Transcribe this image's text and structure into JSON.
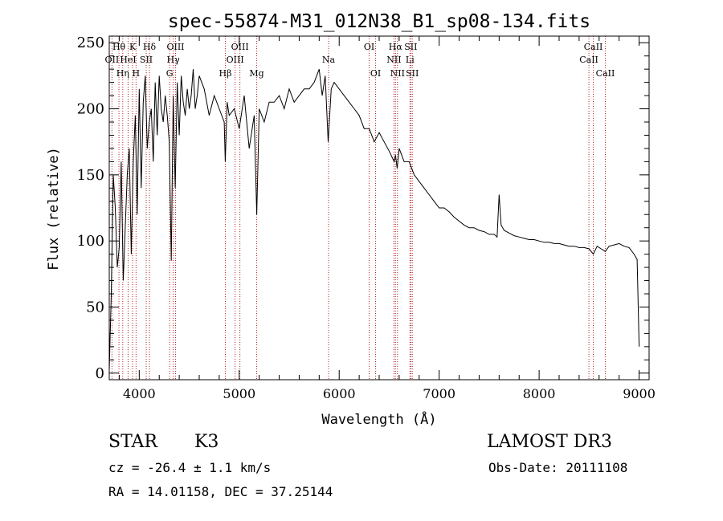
{
  "chart_data": {
    "type": "line",
    "title": "spec-55874-M31_012N38_B1_sp08-134.fits",
    "xlabel": "Wavelength (Å)",
    "ylabel": "Flux (relative)",
    "xlim": [
      3700,
      9100
    ],
    "ylim": [
      -5,
      255
    ],
    "xticks": [
      4000,
      5000,
      6000,
      7000,
      8000,
      9000
    ],
    "yticks": [
      0,
      50,
      100,
      150,
      200,
      250
    ],
    "x_minor_step": 200,
    "y_minor_step": 10,
    "colors": {
      "line": "#000000",
      "marker": "#b22222",
      "axes": "#000000"
    },
    "series": [
      {
        "name": "flux",
        "x": [
          3700,
          3720,
          3740,
          3760,
          3780,
          3800,
          3820,
          3840,
          3860,
          3880,
          3900,
          3920,
          3940,
          3960,
          3980,
          4000,
          4020,
          4040,
          4060,
          4080,
          4100,
          4120,
          4140,
          4160,
          4180,
          4200,
          4220,
          4240,
          4260,
          4280,
          4300,
          4320,
          4340,
          4360,
          4380,
          4400,
          4420,
          4440,
          4460,
          4480,
          4500,
          4520,
          4540,
          4560,
          4580,
          4600,
          4650,
          4700,
          4750,
          4800,
          4850,
          4860,
          4880,
          4900,
          4950,
          5000,
          5050,
          5100,
          5150,
          5175,
          5200,
          5250,
          5300,
          5350,
          5400,
          5450,
          5500,
          5550,
          5600,
          5650,
          5700,
          5750,
          5800,
          5830,
          5860,
          5890,
          5920,
          5950,
          6000,
          6050,
          6100,
          6150,
          6200,
          6250,
          6300,
          6350,
          6400,
          6450,
          6500,
          6550,
          6563,
          6580,
          6600,
          6650,
          6700,
          6750,
          6800,
          6850,
          6900,
          6950,
          7000,
          7050,
          7100,
          7150,
          7200,
          7250,
          7300,
          7350,
          7400,
          7450,
          7500,
          7550,
          7580,
          7600,
          7620,
          7650,
          7700,
          7750,
          7800,
          7850,
          7900,
          7950,
          8000,
          8050,
          8100,
          8150,
          8200,
          8250,
          8300,
          8350,
          8400,
          8450,
          8500,
          8542,
          8580,
          8620,
          8662,
          8700,
          8750,
          8800,
          8850,
          8900,
          8950,
          8980,
          9000
        ],
        "y": [
          2,
          60,
          150,
          125,
          80,
          95,
          160,
          70,
          110,
          150,
          170,
          90,
          160,
          195,
          120,
          215,
          140,
          205,
          225,
          170,
          190,
          200,
          160,
          220,
          180,
          225,
          200,
          190,
          210,
          195,
          175,
          85,
          210,
          140,
          220,
          180,
          225,
          205,
          195,
          215,
          200,
          210,
          230,
          200,
          210,
          225,
          215,
          195,
          210,
          200,
          190,
          160,
          205,
          195,
          200,
          185,
          210,
          170,
          195,
          120,
          200,
          190,
          205,
          205,
          210,
          200,
          215,
          205,
          210,
          215,
          215,
          220,
          230,
          210,
          225,
          175,
          215,
          220,
          215,
          210,
          205,
          200,
          195,
          185,
          185,
          175,
          182,
          175,
          168,
          160,
          165,
          155,
          170,
          160,
          160,
          150,
          145,
          140,
          135,
          130,
          125,
          125,
          122,
          118,
          115,
          112,
          110,
          110,
          108,
          107,
          105,
          105,
          103,
          135,
          112,
          108,
          106,
          104,
          103,
          102,
          101,
          101,
          100,
          99,
          99,
          98,
          98,
          97,
          96,
          96,
          95,
          95,
          94,
          90,
          96,
          94,
          92,
          96,
          97,
          98,
          96,
          95,
          90,
          86,
          20
        ]
      }
    ],
    "lines": [
      {
        "name": "OII",
        "x": 3727
      },
      {
        "name": "Hθ",
        "x": 3797
      },
      {
        "name": "Hη",
        "x": 3835
      },
      {
        "name": "HeI",
        "x": 3889
      },
      {
        "name": "K",
        "x": 3934
      },
      {
        "name": "H",
        "x": 3968
      },
      {
        "name": "SII",
        "x": 4070
      },
      {
        "name": "Hδ",
        "x": 4102
      },
      {
        "name": "G",
        "x": 4304
      },
      {
        "name": "Hγ",
        "x": 4340
      },
      {
        "name": "OIII",
        "x": 4363
      },
      {
        "name": "Hβ",
        "x": 4861
      },
      {
        "name": "OIII",
        "x": 4959
      },
      {
        "name": "OIII",
        "x": 5007
      },
      {
        "name": "Mg",
        "x": 5175
      },
      {
        "name": "Na",
        "x": 5894
      },
      {
        "name": "OI",
        "x": 6300
      },
      {
        "name": "OI",
        "x": 6364
      },
      {
        "name": "NII",
        "x": 6548
      },
      {
        "name": "Hα",
        "x": 6563
      },
      {
        "name": "NII",
        "x": 6583
      },
      {
        "name": "Li",
        "x": 6708
      },
      {
        "name": "SII",
        "x": 6716
      },
      {
        "name": "SII",
        "x": 6731
      },
      {
        "name": "CaII",
        "x": 8498
      },
      {
        "name": "CaII",
        "x": 8542
      },
      {
        "name": "CaII",
        "x": 8662
      }
    ],
    "annotations": [
      {
        "id": "ann-oii-1",
        "text": "OII",
        "x": 3727,
        "row": 2
      },
      {
        "id": "ann-htheta",
        "text": "Hθ",
        "x": 3797,
        "row": 1
      },
      {
        "id": "ann-heta",
        "text": "Hη",
        "x": 3835,
        "row": 3
      },
      {
        "id": "ann-hei",
        "text": "HeI",
        "x": 3889,
        "row": 2
      },
      {
        "id": "ann-k",
        "text": "K",
        "x": 3934,
        "row": 1
      },
      {
        "id": "ann-h",
        "text": "H",
        "x": 3968,
        "row": 3
      },
      {
        "id": "ann-sii-1",
        "text": "SII",
        "x": 4070,
        "row": 2
      },
      {
        "id": "ann-hdelta",
        "text": "Hδ",
        "x": 4102,
        "row": 1
      },
      {
        "id": "ann-g",
        "text": "G",
        "x": 4304,
        "row": 3
      },
      {
        "id": "ann-hgamma",
        "text": "Hγ",
        "x": 4340,
        "row": 2
      },
      {
        "id": "ann-oiii-1",
        "text": "OIII",
        "x": 4363,
        "row": 1
      },
      {
        "id": "ann-hbeta",
        "text": "Hβ",
        "x": 4861,
        "row": 3
      },
      {
        "id": "ann-oiii-2",
        "text": "OIII",
        "x": 4959,
        "row": 2
      },
      {
        "id": "ann-oiii-3",
        "text": "OIII",
        "x": 5007,
        "row": 1
      },
      {
        "id": "ann-mg",
        "text": "Mg",
        "x": 5175,
        "row": 3
      },
      {
        "id": "ann-na",
        "text": "Na",
        "x": 5894,
        "row": 2
      },
      {
        "id": "ann-oi-1",
        "text": "OI",
        "x": 6300,
        "row": 1
      },
      {
        "id": "ann-oi-2",
        "text": "OI",
        "x": 6364,
        "row": 3
      },
      {
        "id": "ann-nii-1",
        "text": "NII",
        "x": 6548,
        "row": 2
      },
      {
        "id": "ann-halpha",
        "text": "Hα",
        "x": 6563,
        "row": 1
      },
      {
        "id": "ann-nii-2",
        "text": "NII",
        "x": 6583,
        "row": 3
      },
      {
        "id": "ann-li",
        "text": "Li",
        "x": 6708,
        "row": 2
      },
      {
        "id": "ann-sii-2",
        "text": "SII",
        "x": 6716,
        "row": 1
      },
      {
        "id": "ann-sii-3",
        "text": "SII",
        "x": 6731,
        "row": 3
      },
      {
        "id": "ann-caii-1",
        "text": "CaII",
        "x": 8498,
        "row": 2
      },
      {
        "id": "ann-caii-2",
        "text": "CaII",
        "x": 8542,
        "row": 1
      },
      {
        "id": "ann-caii-3",
        "text": "CaII",
        "x": 8662,
        "row": 3
      }
    ]
  },
  "info": {
    "class": "STAR",
    "subclass": "K3",
    "survey": "LAMOST DR3",
    "cz": "cz = -26.4 ± 1.1 km/s",
    "obs_date": "Obs-Date: 20111108",
    "coords": "RA =  14.01158, DEC =  37.25144"
  }
}
